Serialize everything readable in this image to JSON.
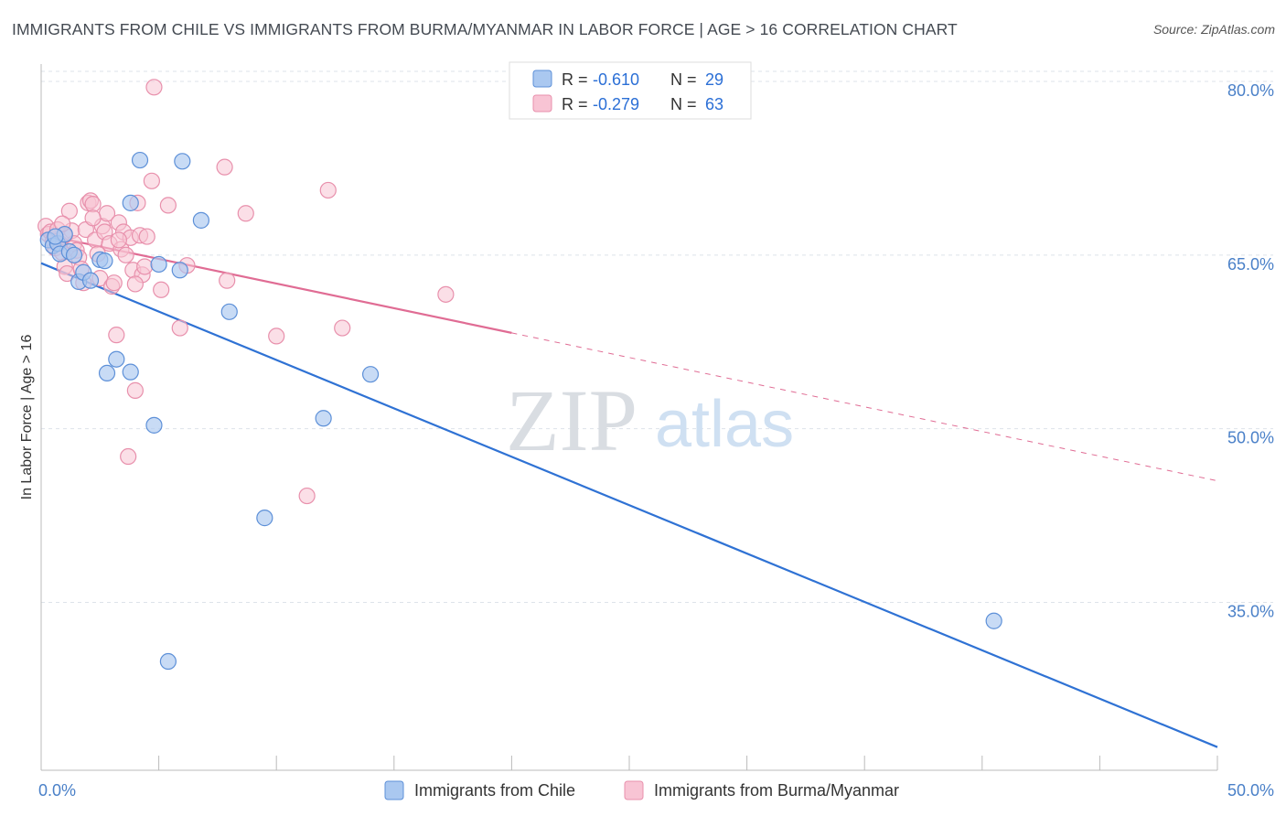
{
  "title": "IMMIGRANTS FROM CHILE VS IMMIGRANTS FROM BURMA/MYANMAR IN LABOR FORCE | AGE > 16 CORRELATION CHART",
  "source": "Source: ZipAtlas.com",
  "watermark": {
    "zip": "ZIP",
    "atlas": "atlas"
  },
  "colors": {
    "chile_fill": "#aac8f0",
    "chile_stroke": "#5d90d8",
    "chile_line": "#2f72d4",
    "burma_fill": "#f8c4d4",
    "burma_stroke": "#e890ac",
    "burma_line": "#e06c94",
    "grid": "#dde3ea",
    "tick_label": "#4a80c8"
  },
  "legend": {
    "rows": [
      {
        "r_label": "R =",
        "r_value": "-0.610",
        "n_label": "N =",
        "n_value": "29"
      },
      {
        "r_label": "R =",
        "r_value": "-0.279",
        "n_label": "N =",
        "n_value": "63"
      }
    ]
  },
  "chart_data": {
    "type": "scatter",
    "title": "IMMIGRANTS FROM CHILE VS IMMIGRANTS FROM BURMA/MYANMAR IN LABOR FORCE | AGE > 16 CORRELATION CHART",
    "xlabel": "",
    "ylabel": "In Labor Force | Age > 16",
    "xlim": [
      0,
      50
    ],
    "ylim": [
      20.5,
      81.5
    ],
    "x_tick_labels": [
      "0.0%",
      "50.0%"
    ],
    "y_ticks": [
      35,
      50,
      65,
      80
    ],
    "y_tick_labels": [
      "35.0%",
      "50.0%",
      "65.0%",
      "80.0%"
    ],
    "grid": true,
    "legend_position": "top-center",
    "series": [
      {
        "name": "Immigrants from Chile",
        "r": -0.61,
        "n": 29,
        "trend": {
          "x": [
            0,
            50
          ],
          "y": [
            64.3,
            22.5
          ],
          "dashed_from": null
        },
        "points": [
          [
            0.3,
            66.3
          ],
          [
            0.5,
            65.8
          ],
          [
            0.7,
            66.0
          ],
          [
            0.8,
            65.1
          ],
          [
            1.0,
            66.8
          ],
          [
            1.2,
            65.3
          ],
          [
            1.4,
            65.0
          ],
          [
            1.6,
            62.7
          ],
          [
            1.8,
            63.5
          ],
          [
            2.1,
            62.8
          ],
          [
            2.5,
            64.6
          ],
          [
            2.7,
            64.5
          ],
          [
            2.8,
            54.8
          ],
          [
            3.2,
            56.0
          ],
          [
            3.8,
            54.9
          ],
          [
            3.8,
            69.5
          ],
          [
            4.2,
            73.2
          ],
          [
            4.8,
            50.3
          ],
          [
            5.0,
            64.2
          ],
          [
            5.4,
            29.9
          ],
          [
            6.0,
            73.1
          ],
          [
            5.9,
            63.7
          ],
          [
            6.8,
            68.0
          ],
          [
            8.0,
            60.1
          ],
          [
            9.5,
            42.3
          ],
          [
            12.0,
            50.9
          ],
          [
            14.0,
            54.7
          ],
          [
            40.5,
            33.4
          ],
          [
            0.6,
            66.6
          ]
        ]
      },
      {
        "name": "Immigrants from Burma/Myanmar",
        "r": -0.279,
        "n": 63,
        "trend": {
          "x": [
            0,
            50
          ],
          "y": [
            66.8,
            45.5
          ],
          "dashed_from": 20
        },
        "points": [
          [
            0.2,
            67.5
          ],
          [
            0.3,
            66.8
          ],
          [
            0.4,
            67.0
          ],
          [
            0.5,
            66.2
          ],
          [
            0.6,
            65.6
          ],
          [
            0.7,
            67.2
          ],
          [
            0.8,
            66.0
          ],
          [
            0.9,
            65.2
          ],
          [
            1.0,
            64.0
          ],
          [
            1.1,
            63.4
          ],
          [
            1.2,
            68.8
          ],
          [
            1.3,
            67.1
          ],
          [
            1.4,
            66.0
          ],
          [
            1.5,
            65.4
          ],
          [
            1.6,
            64.8
          ],
          [
            1.7,
            63.8
          ],
          [
            1.8,
            62.6
          ],
          [
            1.9,
            67.2
          ],
          [
            2.0,
            69.5
          ],
          [
            2.1,
            69.7
          ],
          [
            2.2,
            69.4
          ],
          [
            2.3,
            66.3
          ],
          [
            2.4,
            65.1
          ],
          [
            2.5,
            63.0
          ],
          [
            2.6,
            67.5
          ],
          [
            2.7,
            67.0
          ],
          [
            2.8,
            68.6
          ],
          [
            2.9,
            66.0
          ],
          [
            3.0,
            62.3
          ],
          [
            3.1,
            62.6
          ],
          [
            3.2,
            58.1
          ],
          [
            3.3,
            67.8
          ],
          [
            3.4,
            65.5
          ],
          [
            3.5,
            67.0
          ],
          [
            3.6,
            65.0
          ],
          [
            3.7,
            47.6
          ],
          [
            3.8,
            66.5
          ],
          [
            3.9,
            63.7
          ],
          [
            4.0,
            53.3
          ],
          [
            4.1,
            69.5
          ],
          [
            4.2,
            66.7
          ],
          [
            4.3,
            63.3
          ],
          [
            4.4,
            64.0
          ],
          [
            4.5,
            66.6
          ],
          [
            4.7,
            71.4
          ],
          [
            4.8,
            79.5
          ],
          [
            5.1,
            62.0
          ],
          [
            5.4,
            69.3
          ],
          [
            5.9,
            58.7
          ],
          [
            6.2,
            64.1
          ],
          [
            7.8,
            72.6
          ],
          [
            7.9,
            62.8
          ],
          [
            8.7,
            68.6
          ],
          [
            10.0,
            58.0
          ],
          [
            11.3,
            44.2
          ],
          [
            12.2,
            70.6
          ],
          [
            12.8,
            58.7
          ],
          [
            17.2,
            61.6
          ],
          [
            1.0,
            66.7
          ],
          [
            2.2,
            68.2
          ],
          [
            3.3,
            66.3
          ],
          [
            4.0,
            62.5
          ],
          [
            0.9,
            67.7
          ]
        ]
      }
    ]
  },
  "bottom_legend": {
    "items": [
      "Immigrants from Chile",
      "Immigrants from Burma/Myanmar"
    ]
  }
}
